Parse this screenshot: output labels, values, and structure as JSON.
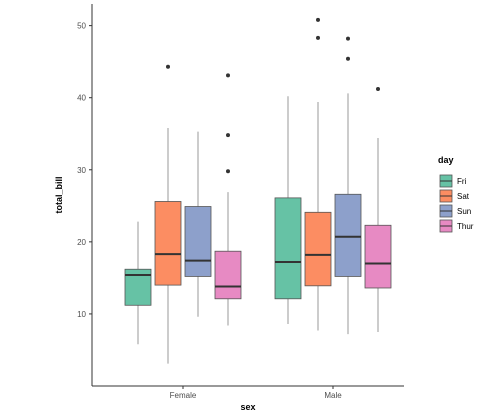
{
  "chart_data": {
    "type": "boxplot",
    "title": "",
    "xlabel": "sex",
    "ylabel": "total_bill",
    "categories": [
      "Female",
      "Male"
    ],
    "ylim": [
      0,
      53
    ],
    "yticks": [
      10,
      20,
      30,
      40,
      50
    ],
    "grid": false,
    "legend": {
      "title": "day",
      "position": "right",
      "entries": [
        "Fri",
        "Sat",
        "Sun",
        "Thur"
      ]
    },
    "series": [
      {
        "name": "Fri",
        "color": "#66C2A5",
        "boxes": [
          {
            "category": "Female",
            "whisker_low": 5.8,
            "q1": 11.2,
            "median": 15.4,
            "q3": 16.2,
            "whisker_high": 22.8,
            "outliers": []
          },
          {
            "category": "Male",
            "whisker_low": 8.6,
            "q1": 12.1,
            "median": 17.2,
            "q3": 26.1,
            "whisker_high": 40.2,
            "outliers": []
          }
        ]
      },
      {
        "name": "Sat",
        "color": "#FC8D62",
        "boxes": [
          {
            "category": "Female",
            "whisker_low": 3.1,
            "q1": 14.0,
            "median": 18.3,
            "q3": 25.6,
            "whisker_high": 35.8,
            "outliers": [
              44.3
            ]
          },
          {
            "category": "Male",
            "whisker_low": 7.7,
            "q1": 13.9,
            "median": 18.2,
            "q3": 24.1,
            "whisker_high": 39.4,
            "outliers": [
              48.3,
              50.8
            ]
          }
        ]
      },
      {
        "name": "Sun",
        "color": "#8DA0CB",
        "boxes": [
          {
            "category": "Female",
            "whisker_low": 9.6,
            "q1": 15.2,
            "median": 17.4,
            "q3": 24.9,
            "whisker_high": 35.3,
            "outliers": []
          },
          {
            "category": "Male",
            "whisker_low": 7.2,
            "q1": 15.2,
            "median": 20.7,
            "q3": 26.6,
            "whisker_high": 40.6,
            "outliers": [
              45.4,
              48.2
            ]
          }
        ]
      },
      {
        "name": "Thur",
        "color": "#E78AC3",
        "boxes": [
          {
            "category": "Female",
            "whisker_low": 8.4,
            "q1": 12.1,
            "median": 13.8,
            "q3": 18.7,
            "whisker_high": 26.9,
            "outliers": [
              29.8,
              34.8,
              43.1
            ]
          },
          {
            "category": "Male",
            "whisker_low": 7.5,
            "q1": 13.6,
            "median": 17.0,
            "q3": 22.3,
            "whisker_high": 34.4,
            "outliers": [
              41.2
            ]
          }
        ]
      }
    ]
  }
}
